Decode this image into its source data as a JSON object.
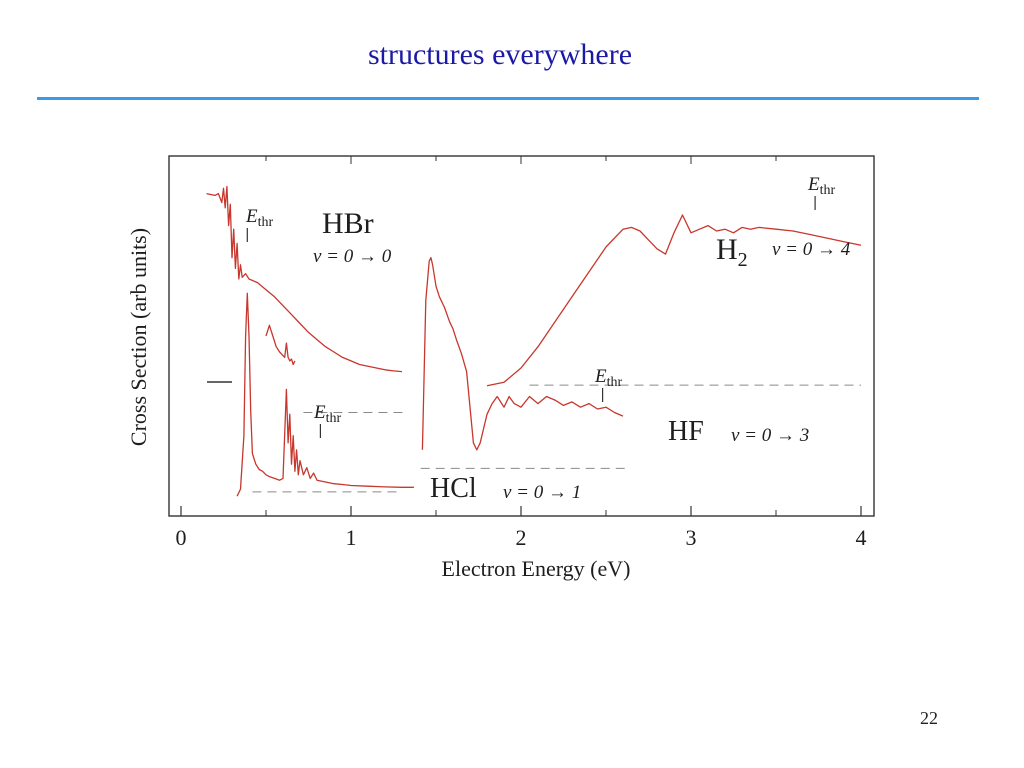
{
  "slide": {
    "title": "structures everywhere",
    "page_number": "22"
  },
  "chart_data": {
    "type": "line",
    "xlabel": "Electron Energy (eV)",
    "ylabel": "Cross Section (arb units)",
    "xlim": [
      -0.08,
      4.08
    ],
    "ylim": [
      0,
      1
    ],
    "xticks": [
      "0",
      "1",
      "2",
      "3",
      "4"
    ],
    "yticks": [],
    "grid": false,
    "legend": "none",
    "threshold_label": "E",
    "threshold_sub": "thr",
    "colors": {
      "curve": "#c8372d",
      "baseline": "#8a8a8a",
      "frame": "#333333"
    },
    "series": [
      {
        "name": "HBr",
        "annotation": "v = 0 → 0",
        "threshold": 0.39,
        "x": [
          0.15,
          0.2,
          0.22,
          0.24,
          0.25,
          0.26,
          0.27,
          0.28,
          0.29,
          0.3,
          0.31,
          0.32,
          0.33,
          0.34,
          0.35,
          0.36,
          0.38,
          0.4,
          0.45,
          0.5,
          0.55,
          0.6,
          0.65,
          0.7,
          0.75,
          0.8,
          0.85,
          0.9,
          0.95,
          1.0,
          1.05,
          1.1,
          1.15,
          1.2,
          1.25,
          1.3
        ],
        "values": [
          0.9,
          0.895,
          0.9,
          0.875,
          0.915,
          0.86,
          0.92,
          0.81,
          0.87,
          0.72,
          0.8,
          0.69,
          0.76,
          0.66,
          0.7,
          0.665,
          0.675,
          0.66,
          0.65,
          0.63,
          0.61,
          0.585,
          0.56,
          0.535,
          0.51,
          0.49,
          0.47,
          0.455,
          0.44,
          0.43,
          0.42,
          0.415,
          0.41,
          0.405,
          0.402,
          0.4
        ]
      },
      {
        "name": "H2",
        "annotation": "v = 0 → 4",
        "threshold": 3.73,
        "x": [
          1.8,
          1.9,
          2.0,
          2.1,
          2.2,
          2.3,
          2.4,
          2.5,
          2.6,
          2.65,
          2.7,
          2.75,
          2.8,
          2.85,
          2.9,
          2.95,
          3.0,
          3.05,
          3.1,
          3.15,
          3.2,
          3.25,
          3.3,
          3.35,
          3.4,
          3.5,
          3.6,
          3.7,
          3.8,
          3.9,
          4.0
        ],
        "values": [
          0.36,
          0.37,
          0.41,
          0.47,
          0.54,
          0.61,
          0.68,
          0.75,
          0.8,
          0.805,
          0.795,
          0.77,
          0.745,
          0.73,
          0.79,
          0.84,
          0.79,
          0.8,
          0.81,
          0.795,
          0.8,
          0.79,
          0.805,
          0.8,
          0.805,
          0.8,
          0.795,
          0.785,
          0.775,
          0.765,
          0.755
        ]
      },
      {
        "name": "HF",
        "annotation": "v = 0 → 3",
        "threshold": 2.48,
        "x": [
          1.42,
          1.44,
          1.46,
          1.47,
          1.48,
          1.5,
          1.52,
          1.55,
          1.58,
          1.6,
          1.62,
          1.65,
          1.68,
          1.7,
          1.72,
          1.74,
          1.76,
          1.78,
          1.8,
          1.83,
          1.86,
          1.9,
          1.93,
          1.96,
          2.0,
          2.05,
          2.1,
          2.15,
          2.2,
          2.25,
          2.3,
          2.35,
          2.4,
          2.45,
          2.5,
          2.55,
          2.6
        ],
        "values": [
          0.18,
          0.6,
          0.71,
          0.72,
          0.7,
          0.64,
          0.61,
          0.58,
          0.54,
          0.52,
          0.49,
          0.45,
          0.4,
          0.3,
          0.2,
          0.18,
          0.2,
          0.24,
          0.28,
          0.31,
          0.33,
          0.3,
          0.33,
          0.31,
          0.3,
          0.33,
          0.31,
          0.33,
          0.32,
          0.305,
          0.315,
          0.3,
          0.31,
          0.295,
          0.3,
          0.285,
          0.275
        ]
      },
      {
        "name": "HCl",
        "annotation": "v = 0 → 1",
        "threshold": 0.82,
        "x": [
          0.33,
          0.35,
          0.37,
          0.38,
          0.39,
          0.4,
          0.41,
          0.42,
          0.44,
          0.46,
          0.48,
          0.5,
          0.52,
          0.55,
          0.58,
          0.6,
          0.62,
          0.63,
          0.64,
          0.65,
          0.66,
          0.67,
          0.68,
          0.69,
          0.7,
          0.72,
          0.74,
          0.76,
          0.78,
          0.8,
          0.85,
          0.9,
          0.95,
          1.0,
          1.1,
          1.2,
          1.3,
          1.37
        ],
        "values": [
          0.05,
          0.07,
          0.22,
          0.5,
          0.62,
          0.5,
          0.29,
          0.17,
          0.14,
          0.125,
          0.12,
          0.11,
          0.105,
          0.1,
          0.095,
          0.1,
          0.35,
          0.2,
          0.28,
          0.14,
          0.22,
          0.12,
          0.18,
          0.11,
          0.15,
          0.11,
          0.13,
          0.1,
          0.115,
          0.095,
          0.09,
          0.085,
          0.083,
          0.08,
          0.078,
          0.076,
          0.075,
          0.075
        ]
      },
      {
        "name": "HCl-inset",
        "annotation": "",
        "threshold": null,
        "x": [
          0.5,
          0.52,
          0.54,
          0.56,
          0.58,
          0.6,
          0.61,
          0.62,
          0.63,
          0.64,
          0.65,
          0.66,
          0.67
        ],
        "values": [
          0.5,
          0.53,
          0.5,
          0.47,
          0.455,
          0.445,
          0.44,
          0.48,
          0.44,
          0.43,
          0.435,
          0.42,
          0.43
        ]
      }
    ],
    "baselines": [
      {
        "series": "H2",
        "x_start": 2.05,
        "x_end": 4.0,
        "y": 0.362
      },
      {
        "series": "HBr",
        "x_start": 0.72,
        "x_end": 1.32,
        "y": 0.285
      },
      {
        "series": "HF",
        "x_start": 1.41,
        "x_end": 2.62,
        "y": 0.128
      },
      {
        "series": "HCl",
        "x_start": 0.42,
        "x_end": 1.3,
        "y": 0.062
      }
    ]
  }
}
